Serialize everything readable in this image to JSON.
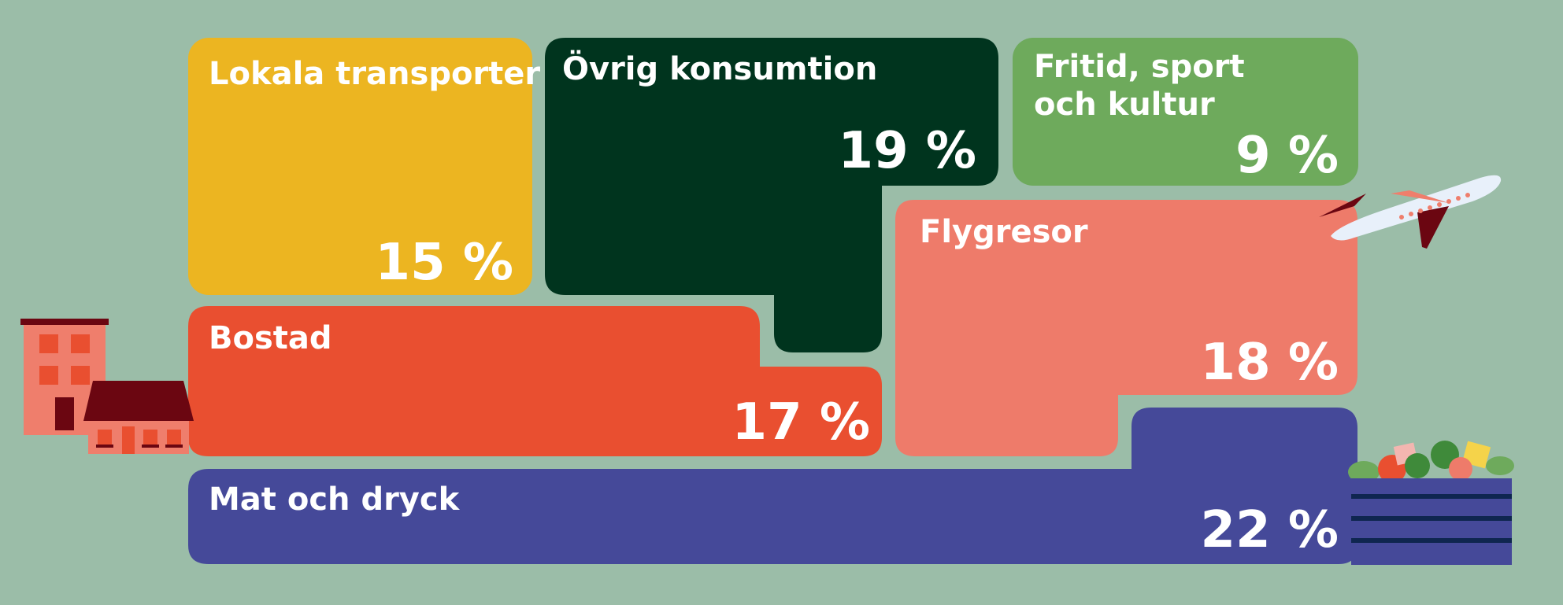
{
  "chart_data": {
    "type": "treemap",
    "unit": "%",
    "categories": [
      {
        "key": "lokala",
        "label": "Lokala transporter",
        "value": 15,
        "value_label": "15 %",
        "color": "#ecb521"
      },
      {
        "key": "ovrig",
        "label": "Övrig konsumtion",
        "value": 19,
        "value_label": "19 %",
        "color": "#00341e"
      },
      {
        "key": "fritid",
        "label": "Fritid, sport\noch kultur",
        "value": 9,
        "value_label": "9 %",
        "color": "#6eaa5c"
      },
      {
        "key": "flyg",
        "label": "Flygresor",
        "value": 18,
        "value_label": "18 %",
        "color": "#ee7b6a"
      },
      {
        "key": "bostad",
        "label": "Bostad",
        "value": 17,
        "value_label": "17 %",
        "color": "#e94f30"
      },
      {
        "key": "mat",
        "label": "Mat och dryck",
        "value": 22,
        "value_label": "22 %",
        "color": "#454999"
      }
    ]
  },
  "colors": {
    "background": "#9bbda8",
    "building": "#ef7e6c",
    "house_roof": "#6b0611",
    "plane_body": "#e8f0fa",
    "plane_wing": "#6b0611",
    "crate": "#454999"
  },
  "icons": {
    "building": "apartment-building-icon",
    "house": "house-icon",
    "plane": "airplane-icon",
    "crate": "food-crate-icon"
  }
}
